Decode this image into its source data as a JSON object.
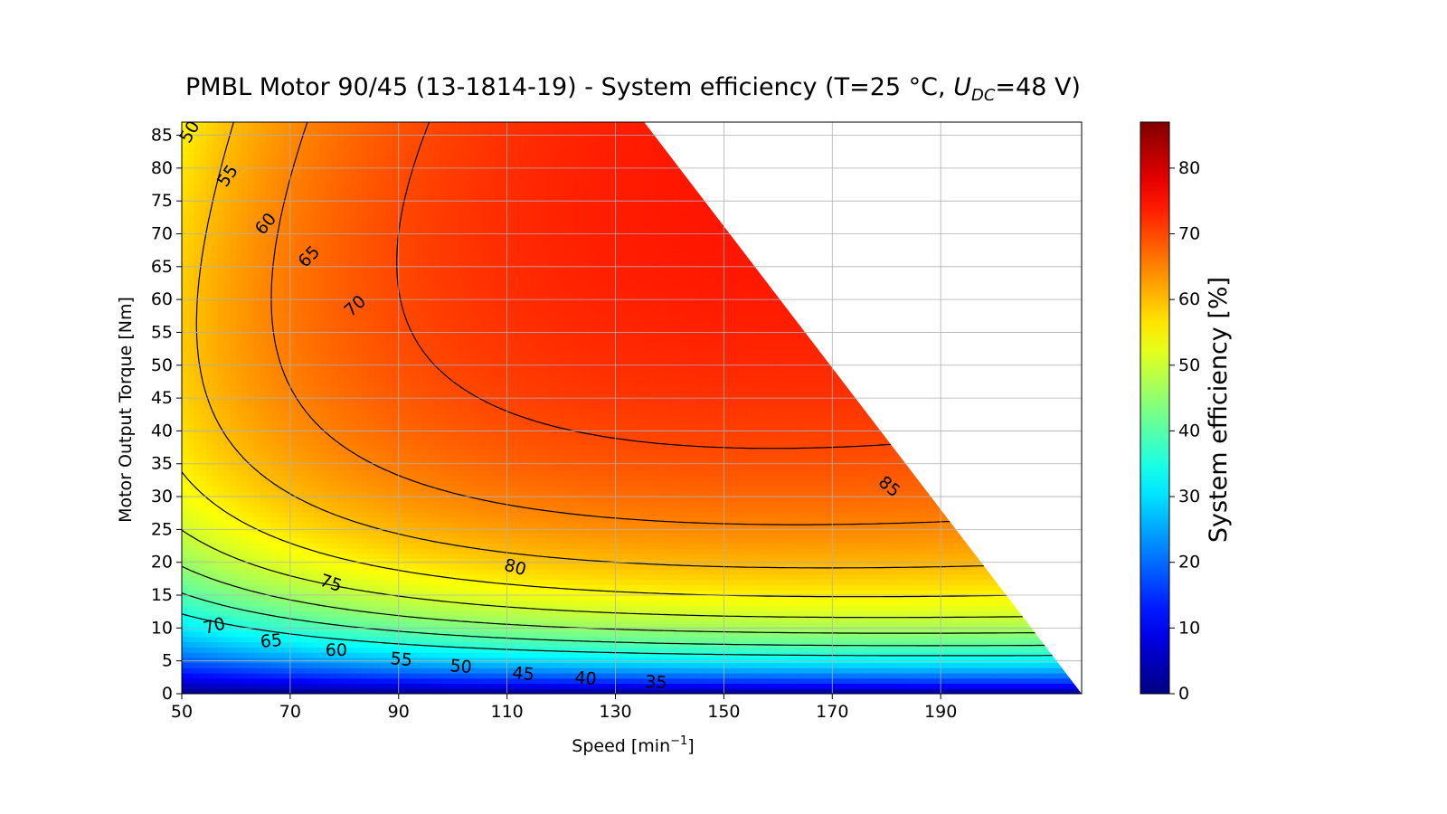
{
  "chart_data": {
    "type": "heatmap",
    "title_main": "PMBL Motor 90/45 (13-1814-19) - System efficiency (T=25 °C, ",
    "title_var": "U",
    "title_sub": "DC",
    "title_tail": "=48 V)",
    "xlabel_main": "Speed [min",
    "xlabel_sup": "−1",
    "xlabel_tail": "]",
    "ylabel": "Motor Output Torque [Nm]",
    "colorbar_label": "System efficiency [%]",
    "colormap": "jet",
    "xlim": [
      50,
      216
    ],
    "ylim": [
      0,
      87
    ],
    "xticks": [
      50,
      70,
      90,
      110,
      130,
      150,
      170,
      190
    ],
    "yticks": [
      0,
      5,
      10,
      15,
      20,
      25,
      30,
      35,
      40,
      45,
      50,
      55,
      60,
      65,
      70,
      75,
      80,
      85
    ],
    "colorbar_range": [
      0,
      87
    ],
    "colorbar_ticks": [
      0,
      10,
      20,
      30,
      40,
      50,
      60,
      70,
      80
    ],
    "grid": true,
    "torque_limit_line": [
      [
        135.3,
        87
      ],
      [
        216,
        0
      ]
    ],
    "contour_levels": [
      35,
      40,
      45,
      50,
      55,
      60,
      65,
      70,
      75,
      80,
      85
    ],
    "contour_labels": [
      {
        "text": "50",
        "x": 51.5,
        "y": 85.5,
        "angle": -60
      },
      {
        "text": "55",
        "x": 58.5,
        "y": 78.8,
        "angle": -55
      },
      {
        "text": "60",
        "x": 65.5,
        "y": 71.5,
        "angle": -50
      },
      {
        "text": "65",
        "x": 73.5,
        "y": 66.5,
        "angle": -45
      },
      {
        "text": "70",
        "x": 82.0,
        "y": 59.0,
        "angle": -42
      },
      {
        "text": "70",
        "x": 56.0,
        "y": 10.3,
        "angle": -15
      },
      {
        "text": "65",
        "x": 66.5,
        "y": 8.0,
        "angle": -5
      },
      {
        "text": "60",
        "x": 78.5,
        "y": 6.6,
        "angle": 0
      },
      {
        "text": "55",
        "x": 90.5,
        "y": 5.2,
        "angle": 5
      },
      {
        "text": "50",
        "x": 101.5,
        "y": 4.1,
        "angle": 5
      },
      {
        "text": "45",
        "x": 113.0,
        "y": 3.0,
        "angle": 5
      },
      {
        "text": "40",
        "x": 124.5,
        "y": 2.3,
        "angle": 5
      },
      {
        "text": "35",
        "x": 137.5,
        "y": 1.7,
        "angle": 3
      },
      {
        "text": "75",
        "x": 77.5,
        "y": 16.8,
        "angle": 18
      },
      {
        "text": "80",
        "x": 111.5,
        "y": 19.2,
        "angle": 15
      },
      {
        "text": "85",
        "x": 180.5,
        "y": 31.5,
        "angle": 40
      }
    ]
  }
}
